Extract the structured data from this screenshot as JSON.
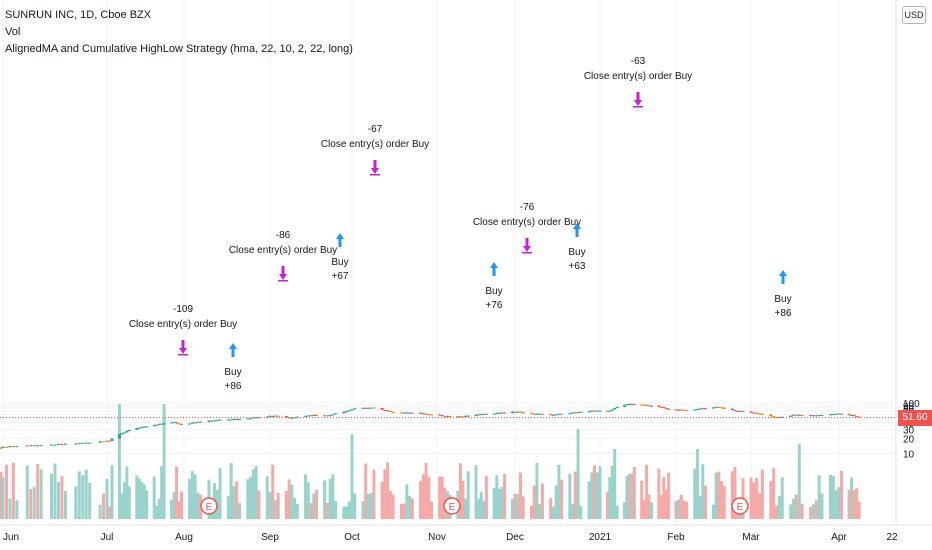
{
  "header": {
    "symbol_line": "SUNRUN INC, 1D, Cboe BZX",
    "vol_label": "Vol",
    "strategy_line": "AlignedMA and Cumulative HighLow Strategy (hma, 22, 10, 2, 22, long)"
  },
  "currency_button": "USD",
  "last_price": "51.60",
  "colors": {
    "up": "#26a69a",
    "down": "#ef5350",
    "orange": "#f57c00",
    "buy": "#2196f3",
    "close": "#c71fd1",
    "grey": "#787b86",
    "price_line": "#ef5350"
  },
  "chart_data": {
    "type": "candlestick",
    "y_ticks": [
      10,
      20,
      30,
      40,
      50,
      60,
      70,
      80,
      90,
      100
    ],
    "ylim": [
      7,
      104
    ],
    "x_ticks": [
      "Jun",
      "Jul",
      "Aug",
      "Sep",
      "Oct",
      "Nov",
      "Dec",
      "2021",
      "Feb",
      "Mar",
      "Apr",
      "22"
    ],
    "last_price": 51.6,
    "earnings_markers": [
      "Aug",
      "Nov",
      "Mar"
    ],
    "earnings_label": "E",
    "trades": [
      {
        "type": "buy",
        "label": "Buy",
        "qty": "+86"
      },
      {
        "type": "close",
        "label": "Close entry(s) order Buy",
        "pnl": "-109"
      },
      {
        "type": "buy",
        "label": "Buy",
        "qty": "+67"
      },
      {
        "type": "close",
        "label": "Close entry(s) order Buy",
        "pnl": "-86"
      },
      {
        "type": "close",
        "label": "Close entry(s) order Buy",
        "pnl": "-67"
      },
      {
        "type": "buy",
        "label": "Buy",
        "qty": "+76"
      },
      {
        "type": "close",
        "label": "Close entry(s) order Buy",
        "pnl": "-76"
      },
      {
        "type": "buy",
        "label": "Buy",
        "qty": "+63"
      },
      {
        "type": "close",
        "label": "Close entry(s) order Buy",
        "pnl": "-63"
      },
      {
        "type": "buy",
        "label": "Buy",
        "qty": "+86"
      }
    ],
    "price_path": [
      [
        "May 28",
        13
      ],
      [
        "Jun 5",
        14
      ],
      [
        "Jun 15",
        15
      ],
      [
        "Jun 24",
        16
      ],
      [
        "Jul 2",
        18
      ],
      [
        "Jul 6",
        24
      ],
      [
        "Jul 10",
        29
      ],
      [
        "Jul 15",
        33
      ],
      [
        "Jul 22",
        38
      ],
      [
        "Jul 28",
        42
      ],
      [
        "Jul 31",
        37
      ],
      [
        "Aug 7",
        43
      ],
      [
        "Aug 13",
        46
      ],
      [
        "Aug 20",
        48
      ],
      [
        "Aug 28",
        52
      ],
      [
        "Sep 3",
        57
      ],
      [
        "Sep 8",
        50
      ],
      [
        "Sep 15",
        57
      ],
      [
        "Sep 22",
        56
      ],
      [
        "Sep 28",
        68
      ],
      [
        "Oct 2",
        78
      ],
      [
        "Oct 8",
        80
      ],
      [
        "Oct 12",
        72
      ],
      [
        "Oct 16",
        66
      ],
      [
        "Oct 23",
        64
      ],
      [
        "Oct 30",
        58
      ],
      [
        "Nov 5",
        55
      ],
      [
        "Nov 10",
        54
      ],
      [
        "Nov 17",
        59
      ],
      [
        "Nov 24",
        63
      ],
      [
        "Dec 1",
        67
      ],
      [
        "Dec 7",
        62
      ],
      [
        "Dec 14",
        58
      ],
      [
        "Dec 21",
        64
      ],
      [
        "Dec 30",
        70
      ],
      [
        "Jan 5",
        70
      ],
      [
        "Jan 8",
        84
      ],
      [
        "Jan 12",
        96
      ],
      [
        "Jan 18",
        92
      ],
      [
        "Jan 25",
        84
      ],
      [
        "Jan 29",
        74
      ],
      [
        "Feb 5",
        72
      ],
      [
        "Feb 11",
        78
      ],
      [
        "Feb 16",
        83
      ],
      [
        "Feb 22",
        72
      ],
      [
        "Mar 1",
        65
      ],
      [
        "Mar 5",
        60
      ],
      [
        "Mar 10",
        51
      ],
      [
        "Mar 16",
        58
      ],
      [
        "Mar 22",
        56
      ],
      [
        "Mar 29",
        60
      ],
      [
        "Apr 2",
        62
      ],
      [
        "Apr 6",
        57
      ],
      [
        "Apr 9",
        52
      ]
    ]
  }
}
